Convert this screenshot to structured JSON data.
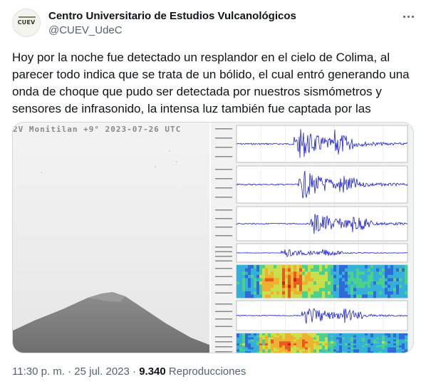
{
  "account": {
    "display_name": "Centro Universitario de Estudios Vulcanológicos",
    "handle": "@CUEV_UdeC",
    "avatar_text": "CUEV"
  },
  "tweet": {
    "text": "Hoy por la noche fue detectado un resplandor en el cielo de Colima, al parecer todo indica que se trata de un bólido, el cual entró generando una onda de choque que pudo ser detectada por nuestros sismómetros y sensores de infrasonido, la intensa luz también fue captada por las"
  },
  "media": {
    "camera_overlay": "2V Monitilan  +9°   2023-07-26 UTC"
  },
  "meta": {
    "time": "11:30 p. m.",
    "separator": "·",
    "date": "25 jul. 2023",
    "views_count": "9.340",
    "views_label": "Reproducciones"
  },
  "icons": {
    "more": "more-options-icon"
  }
}
